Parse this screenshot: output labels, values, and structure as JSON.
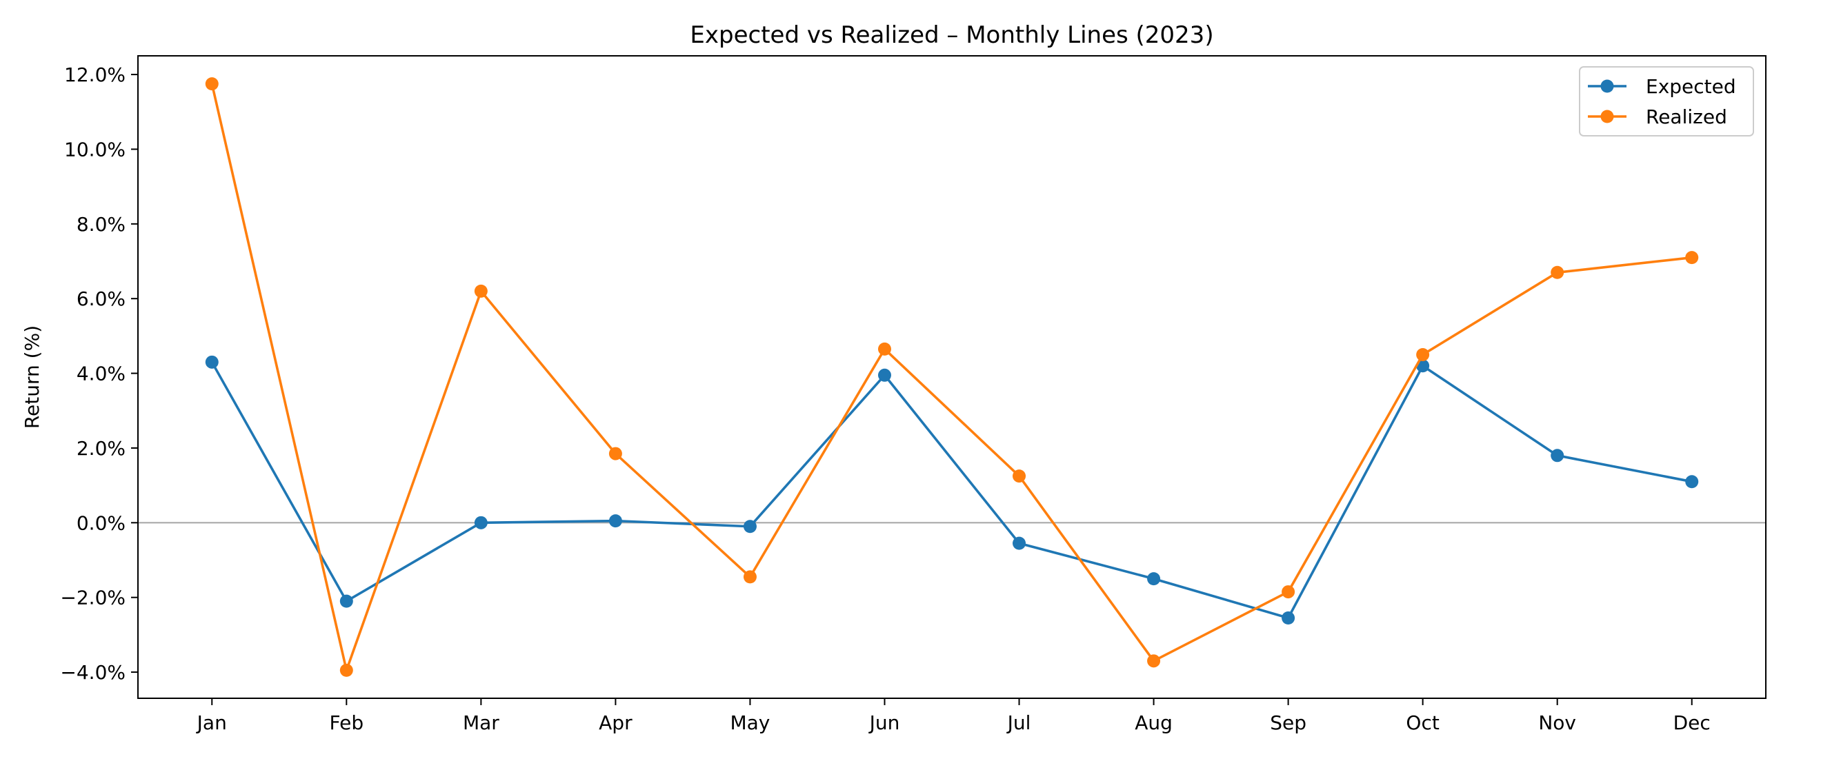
{
  "chart_data": {
    "type": "line",
    "title": "Expected vs Realized – Monthly Lines (2023)",
    "xlabel": "",
    "ylabel": "Return (%)",
    "categories": [
      "Jan",
      "Feb",
      "Mar",
      "Apr",
      "May",
      "Jun",
      "Jul",
      "Aug",
      "Sep",
      "Oct",
      "Nov",
      "Dec"
    ],
    "series": [
      {
        "name": "Expected",
        "color": "#1f77b4",
        "values": [
          4.3,
          -2.1,
          0.0,
          0.05,
          -0.1,
          3.95,
          -0.55,
          -1.5,
          -2.55,
          4.2,
          1.8,
          1.1
        ]
      },
      {
        "name": "Realized",
        "color": "#ff7f0e",
        "values": [
          11.75,
          -3.95,
          6.2,
          1.85,
          -1.45,
          4.65,
          1.25,
          -3.7,
          -1.85,
          4.5,
          6.7,
          7.1
        ]
      }
    ],
    "ylim": [
      -4.7,
      12.5
    ],
    "yticks": [
      -4.0,
      -2.0,
      0.0,
      2.0,
      4.0,
      6.0,
      8.0,
      10.0,
      12.0
    ],
    "ytick_labels": [
      "−4.0%",
      "−2.0%",
      "0.0%",
      "2.0%",
      "4.0%",
      "6.0%",
      "8.0%",
      "10.0%",
      "12.0%"
    ],
    "zero_line": true,
    "zero_line_color": "#aaaaaa",
    "grid": false,
    "legend_position": "top-right"
  }
}
